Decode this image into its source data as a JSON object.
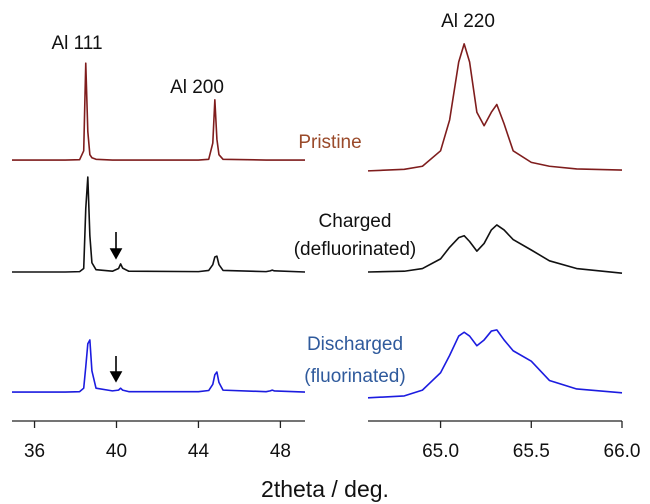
{
  "chart_data": [
    {
      "type": "line",
      "xlabel": "2theta / deg.",
      "annotations": [
        "Al 111",
        "Al 200"
      ],
      "xlim": [
        34.9,
        49.2
      ],
      "xticks": [
        36,
        40,
        44,
        48
      ],
      "ylim": [
        0,
        100
      ],
      "x": [
        34.9,
        37.5,
        38.2,
        38.4,
        38.5,
        38.6,
        38.7,
        38.8,
        39.0,
        39.8,
        40.1,
        40.2,
        40.3,
        40.6,
        44.0,
        44.5,
        44.7,
        44.8,
        44.9,
        45.0,
        45.2,
        47.3,
        47.5,
        47.6,
        47.7,
        49.2
      ],
      "series": [
        {
          "label": [
            "Pristine"
          ],
          "color": "#7f1d1d",
          "label_color": "#9a4a2a",
          "values": [
            67.6,
            67.6,
            67.7,
            70,
            92.7,
            75,
            69,
            68.2,
            67.8,
            67.6,
            67.6,
            67.6,
            67.6,
            67.6,
            67.6,
            67.8,
            72,
            83.2,
            73,
            69,
            67.8,
            67.6,
            67.6,
            67.6,
            67.6,
            67.6
          ]
        },
        {
          "label": [
            "Charged",
            "(defluorinated)"
          ],
          "color": "#111111",
          "label_color": "#111111",
          "values": [
            38.6,
            38.6,
            38.7,
            39.5,
            55,
            63.2,
            48,
            41,
            39.2,
            38.8,
            39.5,
            40.7,
            39.6,
            38.8,
            38.7,
            39,
            40.5,
            42.5,
            42.7,
            40.5,
            39,
            38.7,
            38.9,
            39.1,
            38.9,
            38.6
          ]
        },
        {
          "label": [
            "Discharged",
            "(fluorinated)"
          ],
          "color": "#1c1ce0",
          "label_color": "#2f5a9c",
          "values": [
            7.5,
            7.5,
            7.6,
            8.5,
            14,
            20,
            21,
            13,
            8.5,
            7.8,
            8,
            8.5,
            8,
            7.6,
            7.6,
            7.9,
            9.5,
            12,
            12.7,
            10,
            8,
            7.6,
            7.8,
            8,
            7.8,
            7.5
          ]
        }
      ]
    },
    {
      "type": "line",
      "annotations": [
        "Al 220"
      ],
      "xlim": [
        64.6,
        66.0
      ],
      "xticks": [
        {
          "value": 65,
          "label": "65.0"
        },
        {
          "value": 65.5,
          "label": "65.5"
        },
        {
          "value": 66,
          "label": "66.0"
        }
      ],
      "ylim": [
        0,
        100
      ],
      "x": [
        64.6,
        64.8,
        64.9,
        65.0,
        65.05,
        65.1,
        65.13,
        65.16,
        65.2,
        65.24,
        65.28,
        65.31,
        65.35,
        65.4,
        65.5,
        65.6,
        65.75,
        66.0
      ],
      "series": [
        {
          "color": "#7f1d1d",
          "values": [
            64.8,
            65.2,
            66,
            70,
            78,
            93,
            97.7,
            93,
            80,
            76.5,
            80,
            82,
            77,
            70,
            67,
            66,
            65.3,
            65
          ]
        },
        {
          "color": "#111111",
          "values": [
            38.6,
            38.8,
            39.5,
            42,
            45,
            47.5,
            48,
            46.5,
            44,
            46,
            49.5,
            50.8,
            49.5,
            47,
            44.3,
            41.5,
            39.5,
            38.3
          ]
        },
        {
          "color": "#1c1ce0",
          "values": [
            6,
            6.5,
            8,
            12.5,
            17,
            22,
            23,
            22,
            19.5,
            21,
            23.3,
            23.6,
            21,
            18.2,
            15.5,
            10.5,
            8.3,
            7.3
          ]
        }
      ]
    }
  ]
}
